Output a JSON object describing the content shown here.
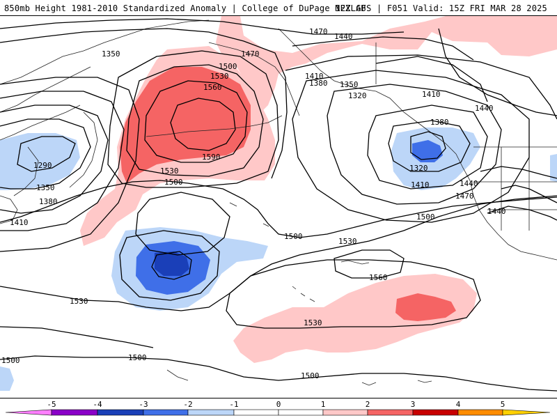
{
  "header": {
    "title": "850mb Height 1981-2010 Standardized Anomaly | College of DuPage NEXLAB",
    "run_info": "12Z GFS | F051 Valid: 15Z FRI MAR 28 2025"
  },
  "anomaly_colors": {
    "-5": "#ff7fff",
    "-4": "#8a00c8",
    "-3": "#1a3fb8",
    "-2": "#3f6fe8",
    "-1": "#bcd6f8",
    "0": "#ffffff",
    "1": "#ffc8c8",
    "2": "#f56464",
    "3": "#c80000",
    "4": "#ff8c00",
    "5": "#ffd000"
  },
  "contour_labels": [
    "1350",
    "1470",
    "1440",
    "1470",
    "1500",
    "1530",
    "1560",
    "1410",
    "1380",
    "1350",
    "1320",
    "1410",
    "1440",
    "1380",
    "1590",
    "1290",
    "1350",
    "1380",
    "1410",
    "1530",
    "1500",
    "1320",
    "1410",
    "1440",
    "1470",
    "1440",
    "1500",
    "1500",
    "1530",
    "1560",
    "1530",
    "1530",
    "1500",
    "1500",
    "1500"
  ],
  "colorbar": {
    "ticks": [
      "-5",
      "-4",
      "-3",
      "-2",
      "-1",
      "0",
      "1",
      "2",
      "3",
      "4",
      "5"
    ]
  }
}
